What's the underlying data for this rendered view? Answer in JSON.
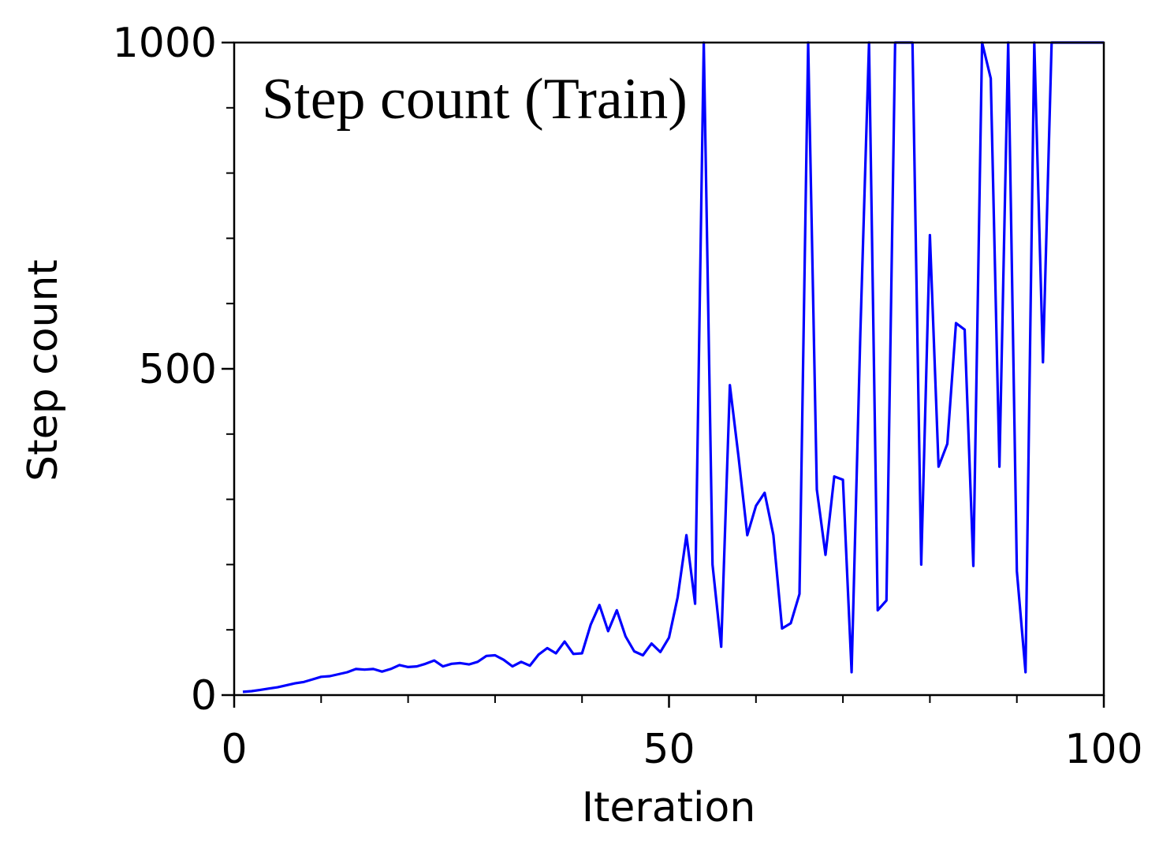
{
  "chart_data": {
    "type": "line",
    "title": "Step count (Train)",
    "xlabel": "Iteration",
    "ylabel": "Step count",
    "xlim": [
      0,
      100
    ],
    "ylim": [
      0,
      1000
    ],
    "x_major_ticks": [
      0,
      50,
      100
    ],
    "x_minor_ticks": [
      10,
      20,
      30,
      40,
      60,
      70,
      80,
      90
    ],
    "y_major_ticks": [
      0,
      500,
      1000
    ],
    "y_minor_ticks": [
      100,
      200,
      300,
      400,
      600,
      700,
      800,
      900
    ],
    "x_tick_labels": [
      "0",
      "50",
      "100"
    ],
    "y_tick_labels": [
      "0",
      "500",
      "1000"
    ],
    "grid": false,
    "series": [
      {
        "color": "#0000ff",
        "x": [
          1,
          2,
          3,
          4,
          5,
          6,
          7,
          8,
          9,
          10,
          11,
          12,
          13,
          14,
          15,
          16,
          17,
          18,
          19,
          20,
          21,
          22,
          23,
          24,
          25,
          26,
          27,
          28,
          29,
          30,
          31,
          32,
          33,
          34,
          35,
          36,
          37,
          38,
          39,
          40,
          41,
          42,
          43,
          44,
          45,
          46,
          47,
          48,
          49,
          50,
          51,
          52,
          53,
          54,
          55,
          56,
          57,
          58,
          59,
          60,
          61,
          62,
          63,
          64,
          65,
          66,
          67,
          68,
          69,
          70,
          71,
          72,
          73,
          74,
          75,
          76,
          77,
          78,
          79,
          80,
          81,
          82,
          83,
          84,
          85,
          86,
          87,
          88,
          89,
          90,
          91,
          92,
          93,
          94,
          95,
          96,
          97,
          98,
          99,
          100
        ],
        "y": [
          5,
          6,
          8,
          10,
          12,
          15,
          18,
          20,
          24,
          28,
          29,
          32,
          35,
          40,
          39,
          40,
          36,
          40,
          46,
          43,
          44,
          48,
          53,
          44,
          48,
          49,
          47,
          51,
          60,
          61,
          54,
          44,
          51,
          45,
          62,
          72,
          64,
          82,
          63,
          64,
          108,
          138,
          98,
          130,
          90,
          67,
          61,
          79,
          66,
          88,
          150,
          245,
          140,
          1000,
          200,
          74,
          475,
          365,
          245,
          290,
          310,
          245,
          102,
          110,
          155,
          1000,
          315,
          215,
          335,
          330,
          35,
          555,
          1000,
          130,
          145,
          1000,
          1000,
          1000,
          200,
          705,
          350,
          385,
          570,
          560,
          198,
          1000,
          945,
          350,
          1000,
          190,
          35,
          1000,
          510,
          1000,
          1000,
          1000,
          1000,
          1000,
          1000,
          1000
        ]
      }
    ]
  }
}
